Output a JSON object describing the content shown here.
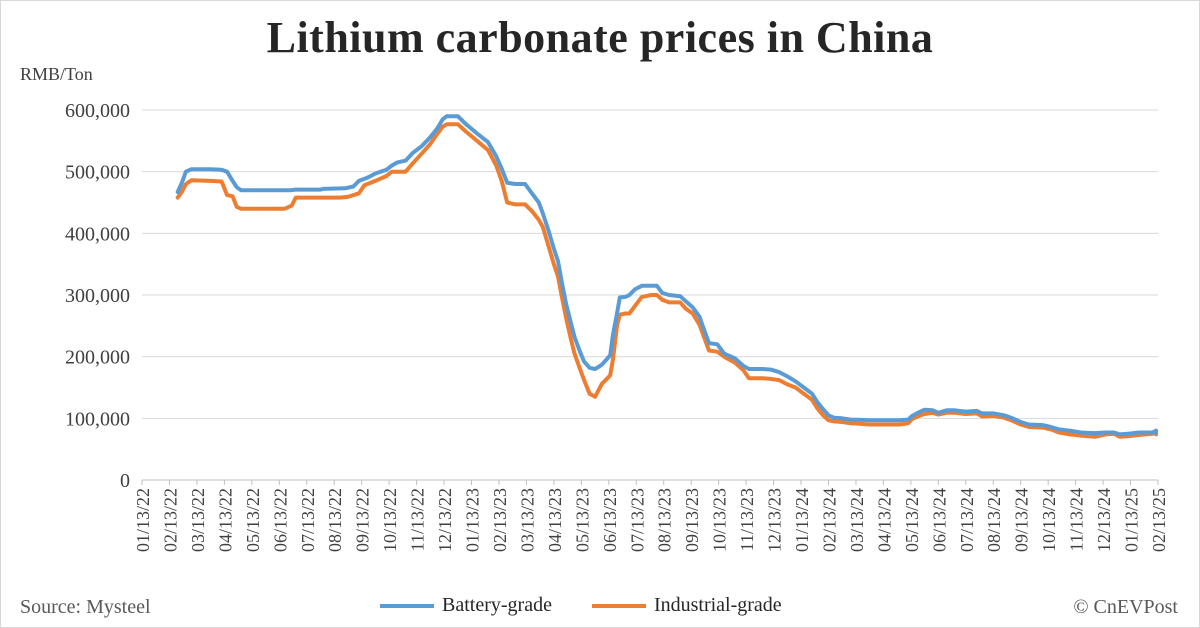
{
  "title": "Lithium carbonate prices in China",
  "unit_label": "RMB/Ton",
  "source": "Source: Mysteel",
  "brand": "© CnEVPost",
  "colors": {
    "battery": "#5b9bd5",
    "industrial": "#ed7d31",
    "grid": "#d9d9d9",
    "axis": "#bfbfbf"
  },
  "chart_data": {
    "type": "line",
    "title": "Lithium carbonate prices in China",
    "ylabel": "RMB/Ton",
    "ylim": [
      0,
      600000
    ],
    "y_ticks": [
      0,
      100000,
      200000,
      300000,
      400000,
      500000,
      600000
    ],
    "y_tick_labels": [
      "0",
      "100,000",
      "200,000",
      "300,000",
      "400,000",
      "500,000",
      "600,000"
    ],
    "x_range_months": [
      0,
      37
    ],
    "x_tick_labels": [
      "01/13/22",
      "02/13/22",
      "03/13/22",
      "04/13/22",
      "05/13/22",
      "06/13/22",
      "07/13/22",
      "08/13/22",
      "09/13/22",
      "10/13/22",
      "11/13/22",
      "12/13/22",
      "01/13/23",
      "02/13/23",
      "03/13/23",
      "04/13/23",
      "05/13/23",
      "06/13/23",
      "07/13/23",
      "08/13/23",
      "09/13/23",
      "10/13/23",
      "11/13/23",
      "12/13/23",
      "01/13/24",
      "02/13/24",
      "03/13/24",
      "04/13/24",
      "05/13/24",
      "06/13/24",
      "07/13/24",
      "08/13/24",
      "09/13/24",
      "10/13/24",
      "11/13/24",
      "12/13/24",
      "01/13/25",
      "02/13/25"
    ],
    "legend": [
      "Battery-grade",
      "Industrial-grade"
    ],
    "series": [
      {
        "name": "Battery-grade",
        "points": [
          [
            1.3,
            467000
          ],
          [
            1.45,
            482000
          ],
          [
            1.6,
            500000
          ],
          [
            1.8,
            504000
          ],
          [
            2.5,
            504000
          ],
          [
            2.9,
            503000
          ],
          [
            3.1,
            500000
          ],
          [
            3.3,
            485000
          ],
          [
            3.45,
            475000
          ],
          [
            3.6,
            470000
          ],
          [
            4.5,
            470000
          ],
          [
            5.4,
            470000
          ],
          [
            5.6,
            471000
          ],
          [
            6.5,
            471000
          ],
          [
            6.6,
            472000
          ],
          [
            7.4,
            473000
          ],
          [
            7.7,
            476000
          ],
          [
            7.9,
            485000
          ],
          [
            8.2,
            490000
          ],
          [
            8.5,
            497000
          ],
          [
            8.9,
            503000
          ],
          [
            9.1,
            510000
          ],
          [
            9.3,
            515000
          ],
          [
            9.6,
            518000
          ],
          [
            9.85,
            530000
          ],
          [
            10.2,
            542000
          ],
          [
            10.5,
            556000
          ],
          [
            10.75,
            570000
          ],
          [
            10.95,
            585000
          ],
          [
            11.1,
            590000
          ],
          [
            11.5,
            590000
          ],
          [
            11.8,
            577000
          ],
          [
            12.2,
            562000
          ],
          [
            12.6,
            548000
          ],
          [
            12.9,
            525000
          ],
          [
            13.1,
            505000
          ],
          [
            13.3,
            482000
          ],
          [
            13.6,
            480000
          ],
          [
            13.95,
            480000
          ],
          [
            14.2,
            465000
          ],
          [
            14.45,
            450000
          ],
          [
            14.6,
            432000
          ],
          [
            14.8,
            405000
          ],
          [
            15.0,
            375000
          ],
          [
            15.15,
            355000
          ],
          [
            15.3,
            318000
          ],
          [
            15.45,
            285000
          ],
          [
            15.6,
            258000
          ],
          [
            15.75,
            232000
          ],
          [
            15.95,
            208000
          ],
          [
            16.1,
            192000
          ],
          [
            16.3,
            182000
          ],
          [
            16.5,
            180000
          ],
          [
            16.75,
            187000
          ],
          [
            16.95,
            197000
          ],
          [
            17.05,
            202000
          ],
          [
            17.15,
            235000
          ],
          [
            17.3,
            270000
          ],
          [
            17.4,
            296000
          ],
          [
            17.6,
            297000
          ],
          [
            17.75,
            300000
          ],
          [
            17.95,
            309000
          ],
          [
            18.2,
            315000
          ],
          [
            18.55,
            315000
          ],
          [
            18.75,
            315000
          ],
          [
            18.95,
            303000
          ],
          [
            19.2,
            300000
          ],
          [
            19.6,
            298000
          ],
          [
            19.8,
            290000
          ],
          [
            20.05,
            280000
          ],
          [
            20.3,
            265000
          ],
          [
            20.5,
            240000
          ],
          [
            20.65,
            222000
          ],
          [
            20.95,
            220000
          ],
          [
            21.2,
            205000
          ],
          [
            21.6,
            197000
          ],
          [
            21.9,
            185000
          ],
          [
            22.1,
            180000
          ],
          [
            22.6,
            180000
          ],
          [
            22.9,
            179000
          ],
          [
            23.2,
            175000
          ],
          [
            23.5,
            168000
          ],
          [
            23.8,
            160000
          ],
          [
            24.1,
            150000
          ],
          [
            24.4,
            140000
          ],
          [
            24.6,
            126000
          ],
          [
            24.8,
            115000
          ],
          [
            25.0,
            105000
          ],
          [
            25.2,
            101000
          ],
          [
            25.5,
            100000
          ],
          [
            25.8,
            98000
          ],
          [
            26.2,
            97500
          ],
          [
            26.5,
            97000
          ],
          [
            27.3,
            97000
          ],
          [
            27.6,
            97000
          ],
          [
            27.9,
            98000
          ],
          [
            28.05,
            104000
          ],
          [
            28.3,
            110000
          ],
          [
            28.5,
            114000
          ],
          [
            28.8,
            113000
          ],
          [
            29.0,
            109000
          ],
          [
            29.3,
            113000
          ],
          [
            29.6,
            113000
          ],
          [
            30.0,
            111000
          ],
          [
            30.4,
            112000
          ],
          [
            30.6,
            108000
          ],
          [
            31.0,
            108000
          ],
          [
            31.4,
            105000
          ],
          [
            31.7,
            100000
          ],
          [
            32.0,
            94000
          ],
          [
            32.3,
            90000
          ],
          [
            32.8,
            89000
          ],
          [
            33.1,
            86000
          ],
          [
            33.4,
            82000
          ],
          [
            33.8,
            80000
          ],
          [
            34.2,
            77000
          ],
          [
            34.7,
            76000
          ],
          [
            35.1,
            77000
          ],
          [
            35.4,
            77000
          ],
          [
            35.6,
            74000
          ],
          [
            35.9,
            75000
          ],
          [
            36.3,
            77000
          ],
          [
            36.8,
            77000
          ],
          [
            36.95,
            80000
          ],
          [
            37.1,
            78000
          ],
          [
            37.4,
            77000
          ],
          [
            38.0,
            76000
          ],
          [
            38.5,
            76000
          ],
          [
            38.7,
            77000
          ],
          [
            39.2,
            77000
          ],
          [
            39.5,
            77000
          ],
          [
            39.7,
            77000
          ]
        ]
      },
      {
        "name": "Industrial-grade",
        "points": [
          [
            1.3,
            458000
          ],
          [
            1.45,
            467000
          ],
          [
            1.6,
            480000
          ],
          [
            1.8,
            486000
          ],
          [
            2.5,
            485000
          ],
          [
            2.9,
            484000
          ],
          [
            3.1,
            462000
          ],
          [
            3.3,
            460000
          ],
          [
            3.45,
            443000
          ],
          [
            3.6,
            440000
          ],
          [
            4.5,
            440000
          ],
          [
            5.2,
            440000
          ],
          [
            5.45,
            445000
          ],
          [
            5.6,
            458000
          ],
          [
            6.5,
            458000
          ],
          [
            7.2,
            458000
          ],
          [
            7.5,
            459000
          ],
          [
            7.9,
            465000
          ],
          [
            8.1,
            478000
          ],
          [
            8.5,
            485000
          ],
          [
            8.9,
            493000
          ],
          [
            9.1,
            500000
          ],
          [
            9.3,
            500000
          ],
          [
            9.6,
            500000
          ],
          [
            9.85,
            513000
          ],
          [
            10.2,
            530000
          ],
          [
            10.5,
            545000
          ],
          [
            10.75,
            561000
          ],
          [
            10.95,
            573000
          ],
          [
            11.1,
            577000
          ],
          [
            11.5,
            577000
          ],
          [
            11.8,
            565000
          ],
          [
            12.2,
            550000
          ],
          [
            12.6,
            535000
          ],
          [
            12.9,
            510000
          ],
          [
            13.1,
            485000
          ],
          [
            13.3,
            450000
          ],
          [
            13.6,
            447000
          ],
          [
            13.95,
            447000
          ],
          [
            14.2,
            436000
          ],
          [
            14.45,
            422000
          ],
          [
            14.6,
            410000
          ],
          [
            14.8,
            380000
          ],
          [
            15.0,
            350000
          ],
          [
            15.15,
            330000
          ],
          [
            15.3,
            295000
          ],
          [
            15.45,
            262000
          ],
          [
            15.6,
            232000
          ],
          [
            15.75,
            205000
          ],
          [
            15.95,
            180000
          ],
          [
            16.1,
            162000
          ],
          [
            16.3,
            140000
          ],
          [
            16.5,
            135000
          ],
          [
            16.75,
            156000
          ],
          [
            16.95,
            165000
          ],
          [
            17.05,
            170000
          ],
          [
            17.15,
            195000
          ],
          [
            17.3,
            250000
          ],
          [
            17.4,
            268000
          ],
          [
            17.6,
            270000
          ],
          [
            17.75,
            270000
          ],
          [
            17.95,
            282000
          ],
          [
            18.2,
            297000
          ],
          [
            18.55,
            300000
          ],
          [
            18.75,
            300000
          ],
          [
            18.95,
            292000
          ],
          [
            19.2,
            288000
          ],
          [
            19.6,
            288000
          ],
          [
            19.8,
            278000
          ],
          [
            20.05,
            270000
          ],
          [
            20.3,
            252000
          ],
          [
            20.5,
            228000
          ],
          [
            20.65,
            210000
          ],
          [
            20.95,
            208000
          ],
          [
            21.2,
            200000
          ],
          [
            21.6,
            190000
          ],
          [
            21.9,
            178000
          ],
          [
            22.1,
            165000
          ],
          [
            22.6,
            165000
          ],
          [
            22.9,
            164000
          ],
          [
            23.2,
            162000
          ],
          [
            23.5,
            155000
          ],
          [
            23.8,
            150000
          ],
          [
            24.1,
            140000
          ],
          [
            24.4,
            130000
          ],
          [
            24.6,
            116000
          ],
          [
            24.8,
            105000
          ],
          [
            25.0,
            97000
          ],
          [
            25.2,
            95000
          ],
          [
            25.5,
            94000
          ],
          [
            25.8,
            92000
          ],
          [
            26.2,
            91000
          ],
          [
            26.5,
            90000
          ],
          [
            27.3,
            90000
          ],
          [
            27.6,
            90000
          ],
          [
            27.9,
            92000
          ],
          [
            28.05,
            99000
          ],
          [
            28.3,
            104000
          ],
          [
            28.5,
            107000
          ],
          [
            28.8,
            109000
          ],
          [
            29.0,
            106000
          ],
          [
            29.3,
            109000
          ],
          [
            29.6,
            109000
          ],
          [
            30.0,
            107000
          ],
          [
            30.4,
            108000
          ],
          [
            30.6,
            103000
          ],
          [
            31.0,
            104000
          ],
          [
            31.4,
            101000
          ],
          [
            31.7,
            96000
          ],
          [
            32.0,
            90000
          ],
          [
            32.3,
            86000
          ],
          [
            32.8,
            85000
          ],
          [
            33.1,
            82000
          ],
          [
            33.4,
            77000
          ],
          [
            33.8,
            74000
          ],
          [
            34.2,
            72000
          ],
          [
            34.7,
            70000
          ],
          [
            35.1,
            74000
          ],
          [
            35.4,
            75000
          ],
          [
            35.6,
            70000
          ],
          [
            35.9,
            71000
          ],
          [
            36.3,
            73000
          ],
          [
            36.8,
            75000
          ],
          [
            36.95,
            80000
          ],
          [
            37.1,
            77000
          ],
          [
            37.4,
            76000
          ],
          [
            38.0,
            74000
          ],
          [
            38.5,
            74000
          ],
          [
            38.7,
            75000
          ],
          [
            39.2,
            75000
          ],
          [
            39.5,
            75000
          ],
          [
            39.7,
            75000
          ]
        ]
      }
    ]
  }
}
